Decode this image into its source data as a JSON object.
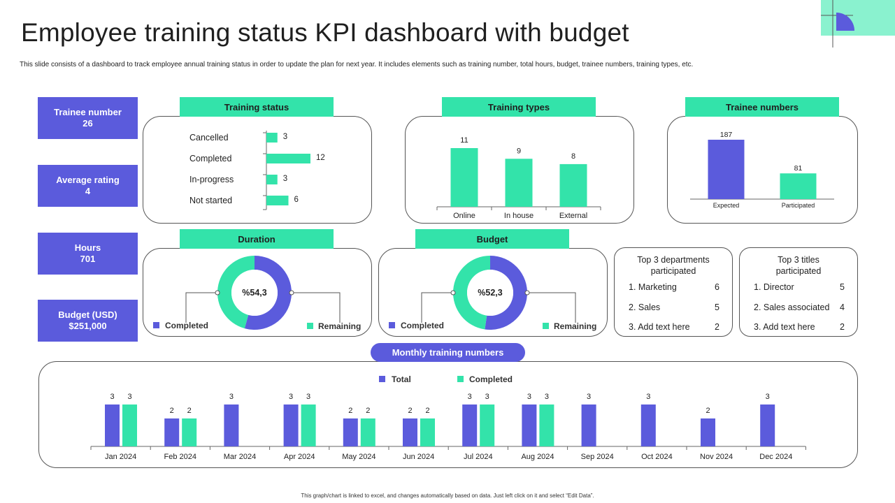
{
  "title": "Employee training status KPI dashboard with budget",
  "subtitle": "This slide consists of a dashboard to track employee annual training status in order to update the plan for next year. It includes elements such as training number, total hours, budget, trainee numbers, training types, etc.",
  "footer": "This graph/chart is linked to excel, and changes automatically based on data. Just left click on it and select “Edit Data”.",
  "colors": {
    "purple": "#5b5bdc",
    "green": "#33e3aa",
    "light_green": "#8af2cf"
  },
  "kpis": [
    {
      "label": "Trainee number",
      "value": "26"
    },
    {
      "label": "Average rating",
      "value": "4"
    },
    {
      "label": "Hours",
      "value": "701"
    },
    {
      "label": "Budget (USD)",
      "value": "$251,000"
    }
  ],
  "headers": {
    "training_status": "Training status",
    "training_types": "Training types",
    "trainee_numbers": "Trainee numbers",
    "duration": "Duration",
    "budget": "Budget",
    "monthly": "Monthly training numbers"
  },
  "top_departments": {
    "title": "Top 3 departments participated",
    "items": [
      {
        "name": "1. Marketing",
        "value": "6"
      },
      {
        "name": "2. Sales",
        "value": "5"
      },
      {
        "name": "3. Add text here",
        "value": "2"
      }
    ]
  },
  "top_titles": {
    "title": "Top 3 titles participated",
    "items": [
      {
        "name": "1. Director",
        "value": "5"
      },
      {
        "name": "2. Sales associated",
        "value": "4"
      },
      {
        "name": "3. Add text here",
        "value": "2"
      }
    ]
  },
  "chart_data": [
    {
      "id": "training_status",
      "type": "bar",
      "orientation": "horizontal",
      "title": "Training status",
      "categories": [
        "Cancelled",
        "Completed",
        "In-progress",
        "Not started"
      ],
      "values": [
        3,
        12,
        3,
        6
      ],
      "xlim": [
        0,
        12
      ]
    },
    {
      "id": "training_types",
      "type": "bar",
      "title": "Training types",
      "categories": [
        "Online",
        "In house",
        "External"
      ],
      "values": [
        11,
        9,
        8
      ],
      "ylim": [
        0,
        11
      ]
    },
    {
      "id": "trainee_numbers",
      "type": "bar",
      "title": "Trainee numbers",
      "categories": [
        "Expected",
        "Participated"
      ],
      "values": [
        187,
        81
      ],
      "ylim": [
        0,
        187
      ]
    },
    {
      "id": "duration",
      "type": "pie",
      "donut": true,
      "title": "Duration",
      "center_label": "%54,3",
      "categories": [
        "Completed",
        "Remaining"
      ],
      "values": [
        54.3,
        45.7
      ]
    },
    {
      "id": "budget",
      "type": "pie",
      "donut": true,
      "title": "Budget",
      "center_label": "%52,3",
      "categories": [
        "Completed",
        "Remaining"
      ],
      "values": [
        52.3,
        47.7
      ]
    },
    {
      "id": "monthly",
      "type": "bar",
      "title": "Monthly training numbers",
      "legend": "top-center",
      "categories": [
        "Jan 2024",
        "Feb 2024",
        "Mar 2024",
        "Apr 2024",
        "May 2024",
        "Jun 2024",
        "Jul 2024",
        "Aug 2024",
        "Sep 2024",
        "Oct 2024",
        "Nov 2024",
        "Dec 2024"
      ],
      "series": [
        {
          "name": "Total",
          "values": [
            3,
            2,
            3,
            3,
            2,
            2,
            3,
            3,
            3,
            3,
            2,
            3
          ]
        },
        {
          "name": "Completed",
          "values": [
            3,
            2,
            null,
            3,
            2,
            2,
            3,
            3,
            null,
            null,
            null,
            null
          ]
        }
      ],
      "ylim": [
        0,
        3
      ]
    }
  ]
}
